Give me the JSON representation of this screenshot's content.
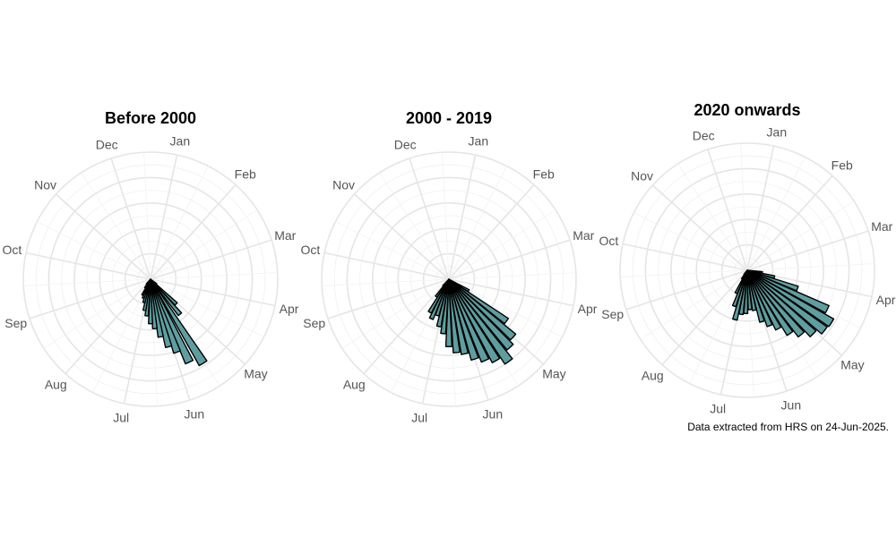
{
  "chart_data": [
    {
      "type": "rose",
      "title": "Before 2000",
      "categories": [
        "Jan",
        "Feb",
        "Mar",
        "Apr",
        "May",
        "Jun",
        "Jul",
        "Aug",
        "Sep",
        "Oct",
        "Nov",
        "Dec"
      ],
      "grid": true,
      "series": [
        {
          "color": "#5f9ea0",
          "values": [
            {
              "angle": 148,
              "r": 0.78
            },
            {
              "angle": 155,
              "r": 0.72
            },
            {
              "angle": 160,
              "r": 0.61
            },
            {
              "angle": 165,
              "r": 0.55
            },
            {
              "angle": 170,
              "r": 0.46
            },
            {
              "angle": 175,
              "r": 0.39
            },
            {
              "angle": 180,
              "r": 0.35
            },
            {
              "angle": 186,
              "r": 0.29
            },
            {
              "angle": 191,
              "r": 0.25
            },
            {
              "angle": 196,
              "r": 0.19
            },
            {
              "angle": 201,
              "r": 0.16
            },
            {
              "angle": 207,
              "r": 0.14
            },
            {
              "angle": 213,
              "r": 0.08
            },
            {
              "angle": 220,
              "r": 0.05
            },
            {
              "angle": 140,
              "r": 0.36
            },
            {
              "angle": 134,
              "r": 0.28
            },
            {
              "angle": 128,
              "r": 0.06
            }
          ]
        }
      ]
    },
    {
      "type": "rose",
      "title": "2000 - 2019",
      "categories": [
        "Jan",
        "Feb",
        "Mar",
        "Apr",
        "May",
        "Jun",
        "Jul",
        "Aug",
        "Sep",
        "Oct",
        "Nov",
        "Dec"
      ],
      "grid": true,
      "series": [
        {
          "color": "#5f9ea0",
          "values": [
            {
              "angle": 126,
              "r": 0.56
            },
            {
              "angle": 132,
              "r": 0.68
            },
            {
              "angle": 138,
              "r": 0.72
            },
            {
              "angle": 144,
              "r": 0.8
            },
            {
              "angle": 150,
              "r": 0.74
            },
            {
              "angle": 156,
              "r": 0.7
            },
            {
              "angle": 162,
              "r": 0.66
            },
            {
              "angle": 168,
              "r": 0.6
            },
            {
              "angle": 174,
              "r": 0.58
            },
            {
              "angle": 180,
              "r": 0.53
            },
            {
              "angle": 186,
              "r": 0.43
            },
            {
              "angle": 192,
              "r": 0.38
            },
            {
              "angle": 198,
              "r": 0.3
            },
            {
              "angle": 204,
              "r": 0.34
            },
            {
              "angle": 210,
              "r": 0.3
            },
            {
              "angle": 216,
              "r": 0.17
            },
            {
              "angle": 222,
              "r": 0.07
            },
            {
              "angle": 120,
              "r": 0.18
            }
          ]
        }
      ]
    },
    {
      "type": "rose",
      "title": "2020 onwards",
      "categories": [
        "Jan",
        "Feb",
        "Mar",
        "Apr",
        "May",
        "Jun",
        "Jul",
        "Aug",
        "Sep",
        "Oct",
        "Nov",
        "Dec"
      ],
      "grid": true,
      "series": [
        {
          "color": "#5f9ea0",
          "values": [
            {
              "angle": 98,
              "r": 0.12
            },
            {
              "angle": 104,
              "r": 0.22
            },
            {
              "angle": 110,
              "r": 0.42
            },
            {
              "angle": 116,
              "r": 0.7
            },
            {
              "angle": 122,
              "r": 0.78
            },
            {
              "angle": 128,
              "r": 0.77
            },
            {
              "angle": 134,
              "r": 0.72
            },
            {
              "angle": 140,
              "r": 0.66
            },
            {
              "angle": 146,
              "r": 0.6
            },
            {
              "angle": 152,
              "r": 0.52
            },
            {
              "angle": 158,
              "r": 0.47
            },
            {
              "angle": 164,
              "r": 0.42
            },
            {
              "angle": 170,
              "r": 0.32
            },
            {
              "angle": 176,
              "r": 0.31
            },
            {
              "angle": 182,
              "r": 0.34
            },
            {
              "angle": 188,
              "r": 0.35
            },
            {
              "angle": 194,
              "r": 0.4
            },
            {
              "angle": 200,
              "r": 0.3
            },
            {
              "angle": 206,
              "r": 0.2
            },
            {
              "angle": 212,
              "r": 0.08
            },
            {
              "angle": 218,
              "r": 0.04
            }
          ]
        }
      ]
    }
  ],
  "caption": "Data extracted from HRS on 24-Jun-2025.",
  "colors": {
    "bar_fill": "#5f9ea0",
    "bar_stroke": "#000000",
    "grid": "#e5e5e5",
    "label": "#555555"
  }
}
